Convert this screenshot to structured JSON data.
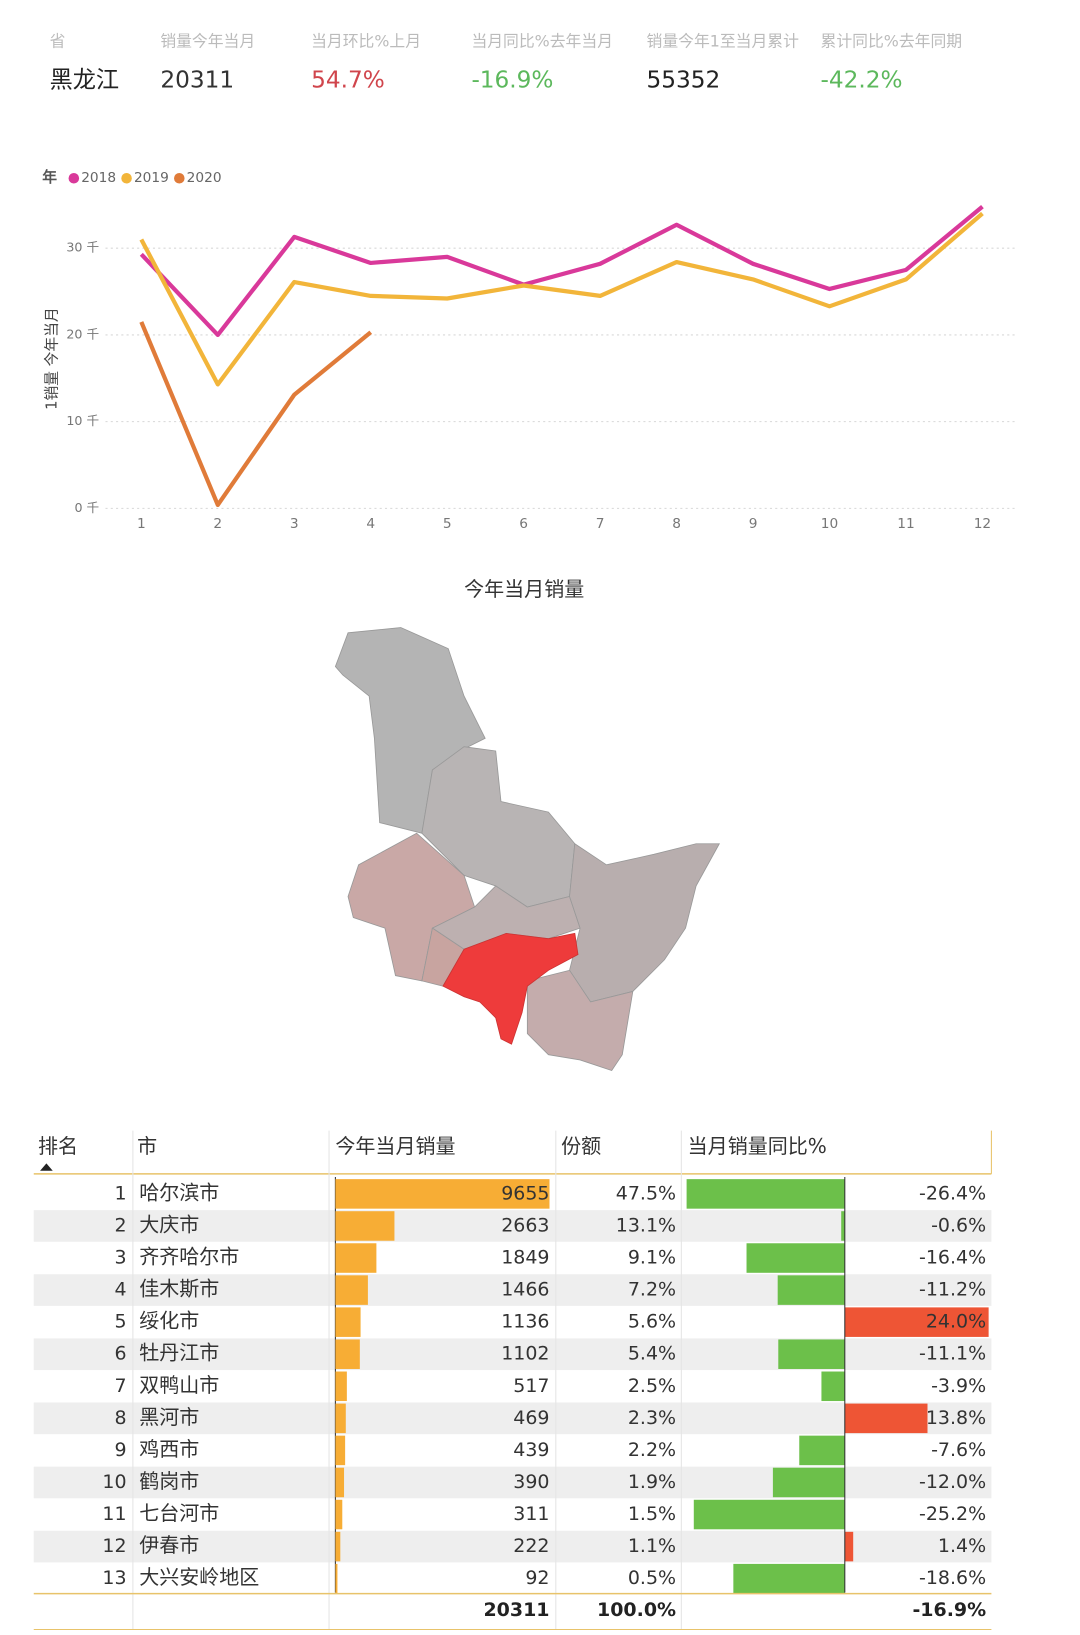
{
  "kpis": {
    "labels": [
      "省",
      "销量今年当月",
      "当月环比%上月",
      "当月同比%去年当月",
      "销量今年1至当月累计",
      "累计同比%去年同期"
    ],
    "values": [
      "黑龙江",
      "20311",
      "54.7%",
      "-16.9%",
      "55352",
      "-42.2%"
    ],
    "colors": [
      "#222222",
      "#333333",
      "#d0454c",
      "#5cb85c",
      "#222222",
      "#5cb85c"
    ]
  },
  "chart_data": {
    "type": "line",
    "legend_title": "年",
    "y_label": "1销量 今年当月",
    "categories": [
      "1",
      "2",
      "3",
      "4",
      "5",
      "6",
      "7",
      "8",
      "9",
      "10",
      "11",
      "12"
    ],
    "series": [
      {
        "name": "2018",
        "color": "#d9399a",
        "values": [
          29300,
          20000,
          31300,
          28300,
          29000,
          25800,
          28200,
          32700,
          28200,
          25300,
          27500,
          34800
        ]
      },
      {
        "name": "2019",
        "color": "#f2b53a",
        "values": [
          31000,
          14300,
          26100,
          24500,
          24200,
          25700,
          24500,
          28400,
          26400,
          23300,
          26400,
          34000
        ]
      },
      {
        "name": "2020",
        "color": "#e07b39",
        "values": [
          21500,
          400,
          13100,
          20311,
          null,
          null,
          null,
          null,
          null,
          null,
          null,
          null
        ]
      }
    ],
    "ylim": [
      0,
      36000
    ],
    "yticks": [
      {
        "value": 0,
        "label": "0 千"
      },
      {
        "value": 10000,
        "label": "10 千"
      },
      {
        "value": 20000,
        "label": "20 千"
      },
      {
        "value": 30000,
        "label": "30 千"
      }
    ],
    "grid": true
  },
  "map": {
    "title": "今年当月销量"
  },
  "table": {
    "columns": [
      "排名",
      "市",
      "今年当月销量",
      "份额",
      "当月销量同比%"
    ],
    "rows": [
      {
        "rank": 1,
        "city": "哈尔滨市",
        "sales": 9655,
        "share": "47.5%",
        "yoy": -26.4,
        "yoy_label": "-26.4%"
      },
      {
        "rank": 2,
        "city": "大庆市",
        "sales": 2663,
        "share": "13.1%",
        "yoy": -0.6,
        "yoy_label": "-0.6%"
      },
      {
        "rank": 3,
        "city": "齐齐哈尔市",
        "sales": 1849,
        "share": "9.1%",
        "yoy": -16.4,
        "yoy_label": "-16.4%"
      },
      {
        "rank": 4,
        "city": "佳木斯市",
        "sales": 1466,
        "share": "7.2%",
        "yoy": -11.2,
        "yoy_label": "-11.2%"
      },
      {
        "rank": 5,
        "city": "绥化市",
        "sales": 1136,
        "share": "5.6%",
        "yoy": 24.0,
        "yoy_label": "24.0%"
      },
      {
        "rank": 6,
        "city": "牡丹江市",
        "sales": 1102,
        "share": "5.4%",
        "yoy": -11.1,
        "yoy_label": "-11.1%"
      },
      {
        "rank": 7,
        "city": "双鸭山市",
        "sales": 517,
        "share": "2.5%",
        "yoy": -3.9,
        "yoy_label": "-3.9%"
      },
      {
        "rank": 8,
        "city": "黑河市",
        "sales": 469,
        "share": "2.3%",
        "yoy": 13.8,
        "yoy_label": "13.8%"
      },
      {
        "rank": 9,
        "city": "鸡西市",
        "sales": 439,
        "share": "2.2%",
        "yoy": -7.6,
        "yoy_label": "-7.6%"
      },
      {
        "rank": 10,
        "city": "鹤岗市",
        "sales": 390,
        "share": "1.9%",
        "yoy": -12.0,
        "yoy_label": "-12.0%"
      },
      {
        "rank": 11,
        "city": "七台河市",
        "sales": 311,
        "share": "1.5%",
        "yoy": -25.2,
        "yoy_label": "-25.2%"
      },
      {
        "rank": 12,
        "city": "伊春市",
        "sales": 222,
        "share": "1.1%",
        "yoy": 1.4,
        "yoy_label": "1.4%"
      },
      {
        "rank": 13,
        "city": "大兴安岭地区",
        "sales": 92,
        "share": "0.5%",
        "yoy": -18.6,
        "yoy_label": "-18.6%"
      }
    ],
    "total": {
      "sales": 20311,
      "share": "100.0%",
      "yoy_label": "-16.9%"
    }
  }
}
